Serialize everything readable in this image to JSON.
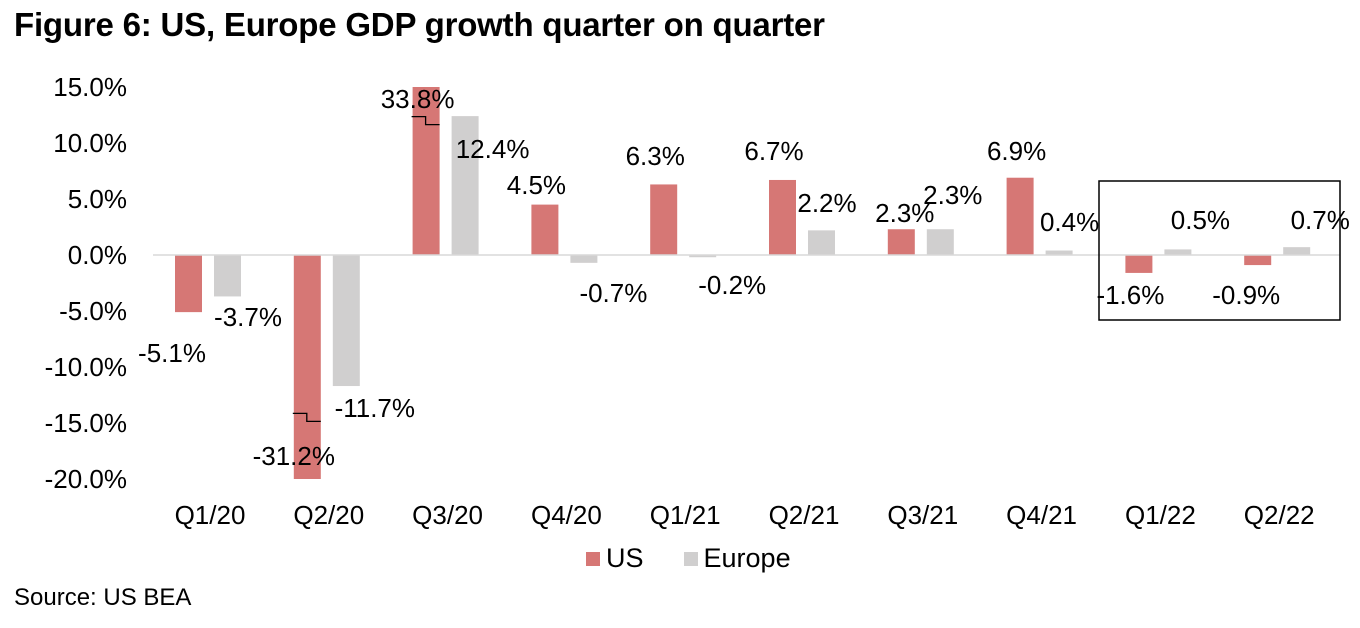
{
  "title": "Figure 6: US, Europe GDP growth quarter on quarter",
  "source": "Source: US BEA",
  "colors": {
    "US": "#d67775",
    "Europe": "#d0cfcf",
    "zero_line": "#d9d9d9",
    "highlight_box": "#000000"
  },
  "legend": [
    {
      "label": "US",
      "color": "#d67775"
    },
    {
      "label": "Europe",
      "color": "#d0cfcf"
    }
  ],
  "chart_data": {
    "type": "bar",
    "title": "Figure 6: US, Europe GDP growth quarter on quarter",
    "xlabel": "",
    "ylabel": "",
    "ylim": [
      -20,
      15
    ],
    "yticks": [
      15,
      10,
      5,
      0,
      -5,
      -10,
      -15,
      -20
    ],
    "ytick_labels": [
      "15.0%",
      "10.0%",
      "5.0%",
      "0.0%",
      "-5.0%",
      "-10.0%",
      "-15.0%",
      "-20.0%"
    ],
    "grid": false,
    "legend_position": "bottom-center",
    "categories": [
      "Q1/20",
      "Q2/20",
      "Q3/20",
      "Q4/20",
      "Q1/21",
      "Q2/21",
      "Q3/21",
      "Q4/21",
      "Q1/22",
      "Q2/22"
    ],
    "series": [
      {
        "name": "US",
        "color": "#d67775",
        "values": [
          -5.1,
          -31.2,
          33.8,
          4.5,
          6.3,
          6.7,
          2.3,
          6.9,
          -1.6,
          -0.9
        ],
        "labels": [
          "-5.1%",
          "-31.2%",
          "33.8%",
          "4.5%",
          "6.3%",
          "6.7%",
          "2.3%",
          "6.9%",
          "-1.6%",
          "-0.9%"
        ]
      },
      {
        "name": "Europe",
        "color": "#d0cfcf",
        "values": [
          -3.7,
          -11.7,
          12.4,
          -0.7,
          -0.2,
          2.2,
          2.3,
          0.4,
          0.5,
          0.7
        ],
        "labels": [
          "-3.7%",
          "-11.7%",
          "12.4%",
          "-0.7%",
          "-0.2%",
          "2.2%",
          "2.3%",
          "0.4%",
          "0.5%",
          "0.7%"
        ]
      }
    ],
    "axis_breaks": [
      "Q2/20 US bar truncated at -20%",
      "Q3/20 US bar truncated at 15%"
    ],
    "annotations": [
      "Box highlighting Q1/22 and Q2/22"
    ]
  }
}
